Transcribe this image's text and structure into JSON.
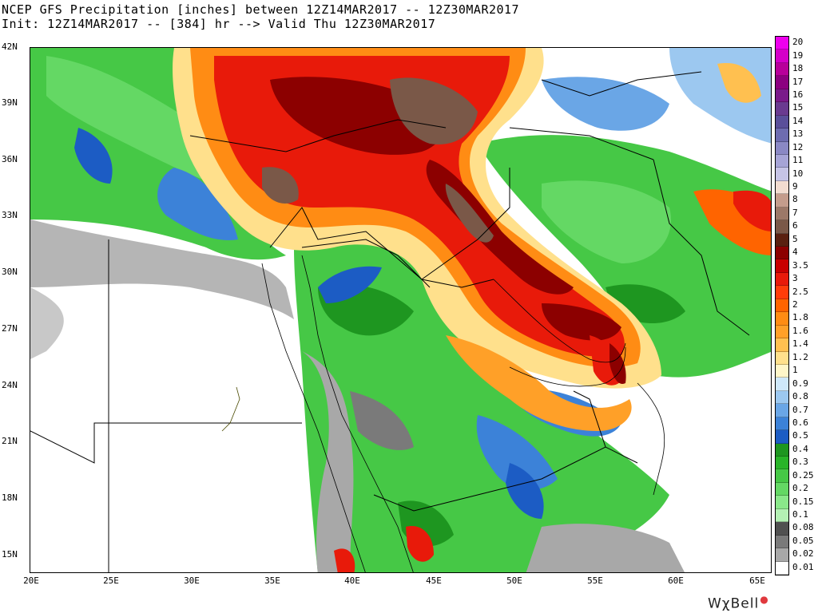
{
  "header": {
    "line1": "NCEP GFS Precipitation [inches] between 12Z14MAR2017 -- 12Z30MAR2017",
    "line2": "Init: 12Z14MAR2017 -- [384] hr --> Valid Thu 12Z30MAR2017"
  },
  "map": {
    "lat_labels": [
      "42N",
      "39N",
      "36N",
      "33N",
      "30N",
      "27N",
      "24N",
      "21N",
      "18N",
      "15N"
    ],
    "lon_labels": [
      "20E",
      "25E",
      "30E",
      "35E",
      "40E",
      "45E",
      "50E",
      "55E",
      "60E",
      "65E"
    ]
  },
  "colorbar": {
    "levels": [
      "20",
      "19",
      "18",
      "17",
      "16",
      "15",
      "14",
      "13",
      "12",
      "11",
      "10",
      "9",
      "8",
      "7",
      "6",
      "5",
      "4",
      "3.5",
      "3",
      "2.5",
      "2",
      "1.8",
      "1.6",
      "1.4",
      "1.2",
      "1",
      "0.9",
      "0.8",
      "0.7",
      "0.6",
      "0.5",
      "0.4",
      "0.3",
      "0.25",
      "0.2",
      "0.15",
      "0.1",
      "0.08",
      "0.05",
      "0.02",
      "0.01"
    ],
    "colors": [
      "#ee00ee",
      "#d400c8",
      "#b8009a",
      "#8c0080",
      "#7a1a8a",
      "#6a3a90",
      "#5a4f9a",
      "#6e6cb0",
      "#8a88c4",
      "#a6a4d6",
      "#c6c4e6",
      "#f2dcd0",
      "#c49c8c",
      "#9c7868",
      "#7a5848",
      "#5a2010",
      "#8c0000",
      "#c80000",
      "#e81a0a",
      "#ff3c0a",
      "#ff6400",
      "#ff8c14",
      "#ffa028",
      "#ffc050",
      "#ffe08c",
      "#fff6c8",
      "#cfe8fa",
      "#9cc8f0",
      "#6aa6e6",
      "#3c82d8",
      "#1c5cc4",
      "#1e9620",
      "#28b428",
      "#46c846",
      "#64d864",
      "#8ae88a",
      "#b4f0b4",
      "#505050",
      "#7a7a7a",
      "#a8a8a8",
      "#ffffff"
    ]
  },
  "brand": {
    "name": "WχBell",
    "mark": "●"
  }
}
